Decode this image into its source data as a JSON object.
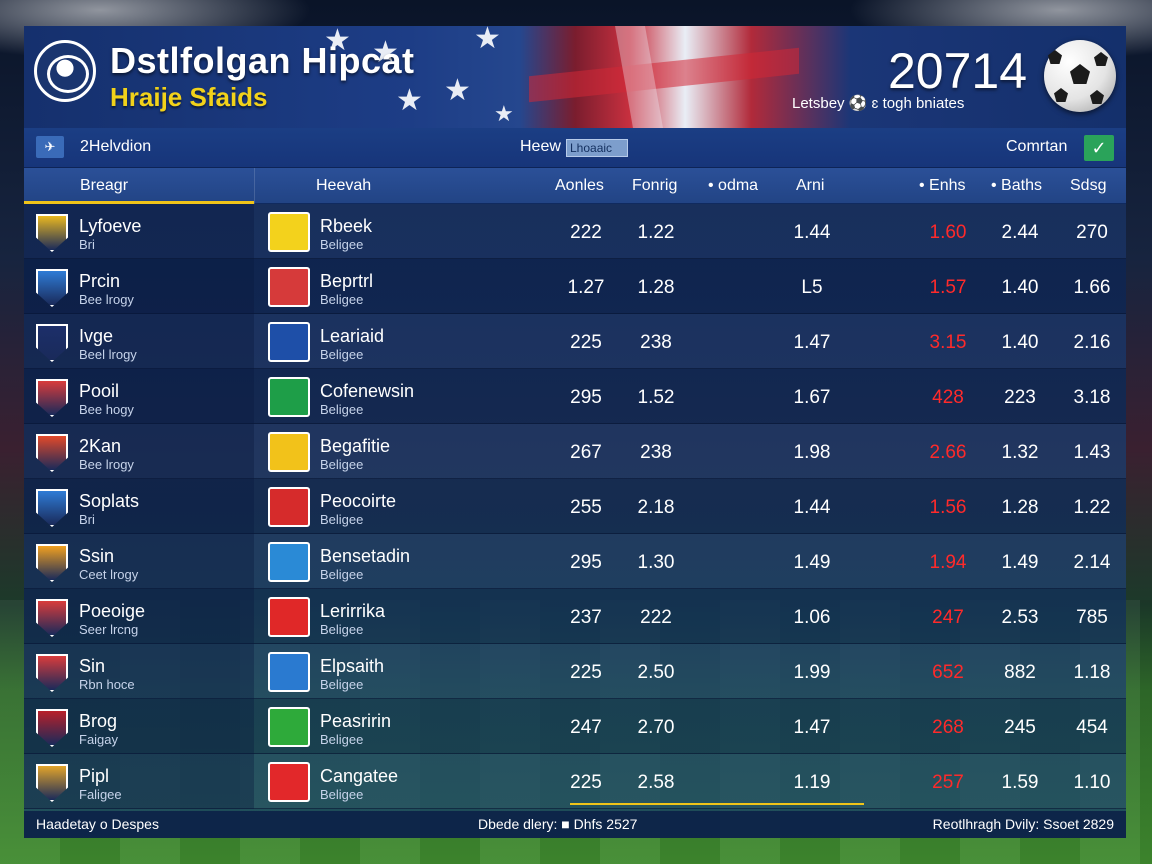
{
  "header": {
    "title": "Dstlfolgan Hipcat",
    "subtitle": "Hraije Sfaids",
    "year": "20714",
    "note": "Letsbey ⚽ ɛ togh bniates"
  },
  "toolbar": {
    "nav_icon": "arrow-icon",
    "nav_label": "2Helvdion",
    "view_label": "Heew",
    "view_value": "Lhoaaic",
    "compare_label": "Comrtan",
    "check_icon": "check-icon"
  },
  "columns": {
    "home": "Breagr",
    "away": "Heevah",
    "c1": "Aonles",
    "c2": "Fonrig",
    "c3": "• odma",
    "c4": "Arni",
    "c5": "• Enhs",
    "c6": "• Baths",
    "c7": "Sdsg"
  },
  "colors": {
    "accent": "#f0c419",
    "alert": "#ff2a2a",
    "panel": "#17357a"
  },
  "rows": [
    {
      "home": "Lyfoeve",
      "home_sub": "Bri",
      "away": "Rbeek",
      "away_sub": "Beligee",
      "c1": "222",
      "c2": "1.22",
      "c4": "1.44",
      "c5": "1.60",
      "c6": "2.44",
      "c7": "270",
      "home_crest": "#e9b820",
      "away_crest": "#f3d21c"
    },
    {
      "home": "Prcin",
      "home_sub": "Bee lrogy",
      "away": "Beprtrl",
      "away_sub": "Beligee",
      "c1": "1.27",
      "c2": "1.28",
      "c4": "L5",
      "c5": "1.57",
      "c6": "1.40",
      "c7": "1.66",
      "home_crest": "#2f7cd6",
      "away_crest": "#d63a3a"
    },
    {
      "home": "Ivge",
      "home_sub": "Beel lrogy",
      "away": "Leariaid",
      "away_sub": "Beligee",
      "c1": "225",
      "c2": "238",
      "c4": "1.47",
      "c5": "3.15",
      "c6": "1.40",
      "c7": "2.16",
      "home_crest": "#1c2f6a",
      "away_crest": "#1e4fa8"
    },
    {
      "home": "Pooil",
      "home_sub": "Bee hogy",
      "away": "Cofenewsin",
      "away_sub": "Beligee",
      "c1": "295",
      "c2": "1.52",
      "c4": "1.67",
      "c5": "428",
      "c6": "223",
      "c7": "3.18",
      "home_crest": "#d93c3c",
      "away_crest": "#1e9e48"
    },
    {
      "home": "2Kan",
      "home_sub": "Bee lrogy",
      "away": "Begafitie",
      "away_sub": "Beligee",
      "c1": "267",
      "c2": "238",
      "c4": "1.98",
      "c5": "2.66",
      "c6": "1.32",
      "c7": "1.43",
      "home_crest": "#e2492a",
      "away_crest": "#f2c21a"
    },
    {
      "home": "Soplats",
      "home_sub": "Bri",
      "away": "Peocoirte",
      "away_sub": "Beligee",
      "c1": "255",
      "c2": "2.18",
      "c4": "1.44",
      "c5": "1.56",
      "c6": "1.28",
      "c7": "1.22",
      "home_crest": "#2f7cd6",
      "away_crest": "#d62b2b"
    },
    {
      "home": "Ssin",
      "home_sub": "Ceet lrogy",
      "away": "Bensetadin",
      "away_sub": "Beligee",
      "c1": "295",
      "c2": "1.30",
      "c4": "1.49",
      "c5": "1.94",
      "c6": "1.49",
      "c7": "2.14",
      "home_crest": "#f0a020",
      "away_crest": "#2a8ad6"
    },
    {
      "home": "Poeoige",
      "home_sub": "Seer lrcng",
      "away": "Lerirrika",
      "away_sub": "Beligee",
      "c1": "237",
      "c2": "222",
      "c4": "1.06",
      "c5": "247",
      "c6": "2.53",
      "c7": "785",
      "home_crest": "#d93c3c",
      "away_crest": "#e02828"
    },
    {
      "home": "Sin",
      "home_sub": "Rbn hoce",
      "away": "Elpsaith",
      "away_sub": "Beligee",
      "c1": "225",
      "c2": "2.50",
      "c4": "1.99",
      "c5": "652",
      "c6": "882",
      "c7": "1.18",
      "home_crest": "#d93c3c",
      "away_crest": "#2a7ad0"
    },
    {
      "home": "Brog",
      "home_sub": "Faigay",
      "away": "Peasririn",
      "away_sub": "Beligee",
      "c1": "247",
      "c2": "2.70",
      "c4": "1.47",
      "c5": "268",
      "c6": "245",
      "c7": "454",
      "home_crest": "#b8202a",
      "away_crest": "#2eaa3a"
    },
    {
      "home": "Pipl",
      "home_sub": "Faligee",
      "away": "Cangatee",
      "away_sub": "Beligee",
      "c1": "225",
      "c2": "2.58",
      "c4": "1.19",
      "c5": "257",
      "c6": "1.59",
      "c7": "1.10",
      "home_crest": "#e2a42a",
      "away_crest": "#e2282a"
    }
  ],
  "footer": {
    "left": "Haadetay o Despes",
    "center": "Dbede dlery: ■ Dhfs 2527",
    "right": "Reotlhragh Dvily: Ssoet 2829"
  }
}
